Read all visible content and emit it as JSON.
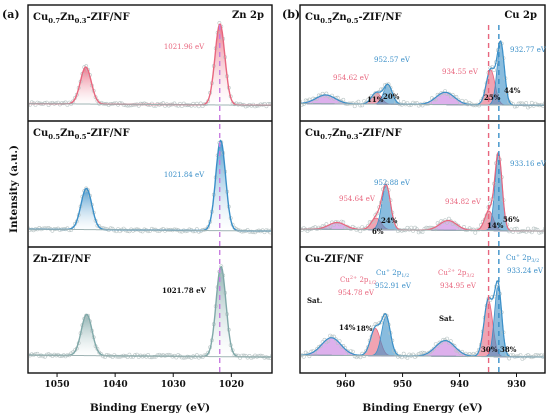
{
  "chart_data": [
    {
      "type": "line",
      "panel_label": "(a)",
      "xlabel": "Binding Energy (eV)",
      "ylabel": "Intensity (a.u.)",
      "xlim": [
        1055,
        1013
      ],
      "x_reversed": true,
      "xticks": [
        1050,
        1040,
        1030,
        1020
      ],
      "corner_label": "Zn 2p",
      "dashed_line_x": 1022,
      "dashed_line_color": "#c77ce0",
      "subpanels": [
        {
          "name": "Cu0.7Zn0.3-ZIF/NF",
          "name_parts": [
            "Cu",
            "0.7",
            "Zn",
            "0.3",
            "-ZIF/NF"
          ],
          "color": "#e8667e",
          "peaks": [
            {
              "center": 1045.05,
              "height": 0.42,
              "fwhm": 2.2
            },
            {
              "center": 1021.96,
              "height": 0.92,
              "fwhm": 2.0
            }
          ],
          "annotations": [
            {
              "text": "1021.96 eV",
              "color": "#e8667e"
            }
          ]
        },
        {
          "name": "Cu0.5Zn0.5-ZIF/NF",
          "name_parts": [
            "Cu",
            "0.5",
            "Zn",
            "0.5",
            "-ZIF/NF"
          ],
          "color": "#3a8fc8",
          "peaks": [
            {
              "center": 1044.95,
              "height": 0.42,
              "fwhm": 2.2
            },
            {
              "center": 1021.84,
              "height": 0.92,
              "fwhm": 2.0
            }
          ],
          "annotations": [
            {
              "text": "1021.84 eV",
              "color": "#3a8fc8"
            }
          ]
        },
        {
          "name": "Zn-ZIF/NF",
          "name_parts": [
            "Zn-ZIF/NF"
          ],
          "color": "#7fa8a8",
          "peaks": [
            {
              "center": 1044.9,
              "height": 0.42,
              "fwhm": 2.2
            },
            {
              "center": 1021.78,
              "height": 0.92,
              "fwhm": 2.0
            }
          ],
          "annotations": [
            {
              "text": "1021.78 eV",
              "color": "#111111"
            }
          ]
        }
      ]
    },
    {
      "type": "line",
      "panel_label": "(b)",
      "xlabel": "Binding Energy (eV)",
      "xlim": [
        968,
        925
      ],
      "x_reversed": true,
      "xticks": [
        960,
        950,
        940,
        930
      ],
      "corner_label": "Cu 2p",
      "dashed_lines": [
        {
          "x": 934.9,
          "color": "#e8667e"
        },
        {
          "x": 933.1,
          "color": "#3a8fc8"
        }
      ],
      "subpanels": [
        {
          "name": "Cu0.5Zn0.5-ZIF/NF",
          "name_parts": [
            "Cu",
            "0.5",
            "Zn",
            "0.5",
            "-ZIF/NF"
          ],
          "peaks": [
            {
              "center": 963.5,
              "height": 0.1,
              "fwhm": 4.0,
              "color": "#c77ce0"
            },
            {
              "center": 954.62,
              "height": 0.13,
              "fwhm": 2.0,
              "color": "#e8667e"
            },
            {
              "center": 952.57,
              "height": 0.22,
              "fwhm": 1.8,
              "color": "#3a8fc8"
            },
            {
              "center": 942.5,
              "height": 0.14,
              "fwhm": 3.8,
              "color": "#c77ce0"
            },
            {
              "center": 934.55,
              "height": 0.4,
              "fwhm": 1.8,
              "color": "#e8667e"
            },
            {
              "center": 932.77,
              "height": 0.7,
              "fwhm": 1.5,
              "color": "#3a8fc8"
            }
          ],
          "annotations": [
            {
              "text": "954.62 eV",
              "color": "#e8667e"
            },
            {
              "text": "952.57 eV",
              "color": "#3a8fc8"
            },
            {
              "text": "934.55 eV",
              "color": "#e8667e"
            },
            {
              "text": "932.77 eV",
              "color": "#3a8fc8"
            },
            {
              "text": "11%",
              "color": "#111111"
            },
            {
              "text": "20%",
              "color": "#111111"
            },
            {
              "text": "25%",
              "color": "#111111"
            },
            {
              "text": "44%",
              "color": "#111111"
            }
          ]
        },
        {
          "name": "Cu0.7Zn0.3-ZIF/NF",
          "name_parts": [
            "Cu",
            "0.7",
            "Zn",
            "0.3",
            "-ZIF/NF"
          ],
          "peaks": [
            {
              "center": 961.5,
              "height": 0.07,
              "fwhm": 3.5,
              "color": "#c77ce0"
            },
            {
              "center": 954.64,
              "height": 0.12,
              "fwhm": 2.0,
              "color": "#e8667e"
            },
            {
              "center": 952.88,
              "height": 0.45,
              "fwhm": 1.8,
              "color": "#3a8fc8"
            },
            {
              "center": 942.0,
              "height": 0.1,
              "fwhm": 3.5,
              "color": "#c77ce0"
            },
            {
              "center": 934.82,
              "height": 0.2,
              "fwhm": 1.8,
              "color": "#e8667e"
            },
            {
              "center": 933.16,
              "height": 0.78,
              "fwhm": 1.5,
              "color": "#3a8fc8"
            }
          ],
          "annotations": [
            {
              "text": "954.64 eV",
              "color": "#e8667e"
            },
            {
              "text": "952.88 eV",
              "color": "#3a8fc8"
            },
            {
              "text": "934.82 eV",
              "color": "#e8667e"
            },
            {
              "text": "933.16 eV",
              "color": "#3a8fc8"
            },
            {
              "text": "24%",
              "color": "#111111"
            },
            {
              "text": "6%",
              "color": "#111111"
            },
            {
              "text": "14%",
              "color": "#111111"
            },
            {
              "text": "56%",
              "color": "#111111"
            }
          ]
        },
        {
          "name": "Cu-ZIF/NF",
          "name_parts": [
            "Cu-ZIF/NF"
          ],
          "peaks": [
            {
              "center": 962.5,
              "height": 0.18,
              "fwhm": 4.0,
              "color": "#c77ce0"
            },
            {
              "center": 954.78,
              "height": 0.28,
              "fwhm": 2.0,
              "color": "#e8667e"
            },
            {
              "center": 952.91,
              "height": 0.4,
              "fwhm": 1.8,
              "color": "#3a8fc8"
            },
            {
              "center": 942.5,
              "height": 0.16,
              "fwhm": 4.0,
              "color": "#c77ce0"
            },
            {
              "center": 934.95,
              "height": 0.58,
              "fwhm": 1.8,
              "color": "#e8667e"
            },
            {
              "center": 933.24,
              "height": 0.72,
              "fwhm": 1.5,
              "color": "#3a8fc8"
            }
          ],
          "annotations": [
            {
              "text": "Sat.",
              "color": "#111111"
            },
            {
              "text": "Cu2+ 2p1/2",
              "color": "#e8667e"
            },
            {
              "text": "954.78 eV",
              "color": "#e8667e"
            },
            {
              "text": "Cu+ 2p1/2",
              "color": "#3a8fc8"
            },
            {
              "text": "952.91 eV",
              "color": "#3a8fc8"
            },
            {
              "text": "Sat.",
              "color": "#111111"
            },
            {
              "text": "Cu2+ 2p3/2",
              "color": "#e8667e"
            },
            {
              "text": "934.95 eV",
              "color": "#e8667e"
            },
            {
              "text": "Cu+ 2p3/2",
              "color": "#3a8fc8"
            },
            {
              "text": "933.24 eV",
              "color": "#3a8fc8"
            },
            {
              "text": "14%",
              "color": "#111111"
            },
            {
              "text": "18%",
              "color": "#111111"
            },
            {
              "text": "30%",
              "color": "#111111"
            },
            {
              "text": "38%",
              "color": "#111111"
            }
          ]
        }
      ]
    }
  ]
}
